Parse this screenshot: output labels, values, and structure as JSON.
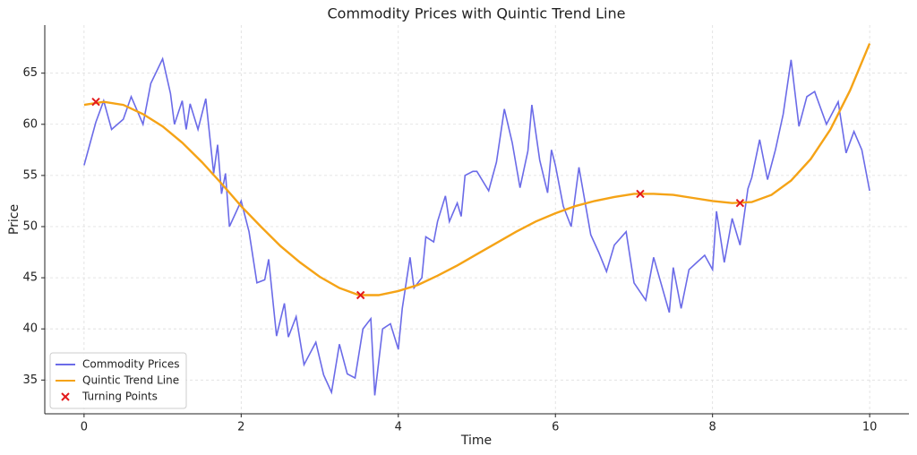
{
  "chart_data": {
    "type": "line",
    "title": "Commodity Prices with Quintic Trend Line",
    "x_label": "Time",
    "y_label": "Price",
    "xlim": [
      -0.5,
      10.5
    ],
    "ylim": [
      31.7,
      69.7
    ],
    "xticks": [
      0,
      2,
      4,
      6,
      8,
      10
    ],
    "yticks": [
      35,
      40,
      45,
      50,
      55,
      60,
      65
    ],
    "grid": true,
    "legend": "lower left",
    "series": [
      {
        "name": "Commodity Prices",
        "color": "#6b6be8",
        "marker": "none",
        "x": [
          0,
          0.15,
          0.25,
          0.35,
          0.5,
          0.6,
          0.75,
          0.85,
          1.0,
          1.1,
          1.15,
          1.25,
          1.3,
          1.35,
          1.45,
          1.55,
          1.65,
          1.7,
          1.75,
          1.8,
          1.85,
          2.0,
          2.1,
          2.2,
          2.3,
          2.35,
          2.45,
          2.55,
          2.6,
          2.7,
          2.8,
          2.95,
          3.05,
          3.15,
          3.25,
          3.35,
          3.45,
          3.55,
          3.65,
          3.7,
          3.8,
          3.9,
          4.0,
          4.05,
          4.15,
          4.2,
          4.3,
          4.35,
          4.45,
          4.5,
          4.6,
          4.65,
          4.75,
          4.8,
          4.85,
          4.95,
          5.0,
          5.15,
          5.25,
          5.35,
          5.45,
          5.55,
          5.65,
          5.7,
          5.8,
          5.9,
          5.95,
          6.0,
          6.1,
          6.2,
          6.3,
          6.45,
          6.55,
          6.65,
          6.75,
          6.9,
          7.0,
          7.15,
          7.25,
          7.45,
          7.5,
          7.6,
          7.7,
          7.8,
          7.9,
          8.0,
          8.05,
          8.15,
          8.25,
          8.35,
          8.45,
          8.5,
          8.6,
          8.7,
          8.8,
          8.9,
          9.0,
          9.1,
          9.2,
          9.3,
          9.45,
          9.6,
          9.7,
          9.8,
          9.9,
          10.0
        ],
        "values": [
          56.0,
          60.2,
          62.3,
          59.5,
          60.5,
          62.7,
          60.0,
          64.0,
          66.4,
          63.0,
          60.0,
          62.3,
          59.5,
          62.0,
          59.5,
          62.5,
          55.2,
          58.0,
          53.2,
          55.2,
          50.0,
          52.5,
          49.5,
          44.5,
          44.8,
          46.8,
          39.3,
          42.5,
          39.2,
          41.2,
          36.5,
          38.7,
          35.5,
          33.8,
          38.5,
          35.6,
          35.2,
          40.0,
          41.0,
          33.5,
          40.0,
          40.5,
          38.0,
          42.0,
          47.0,
          44.0,
          45.0,
          49.0,
          48.5,
          50.5,
          53.0,
          50.5,
          52.3,
          51.0,
          55.0,
          55.4,
          55.4,
          53.5,
          56.3,
          61.5,
          58.2,
          53.8,
          57.4,
          61.9,
          56.5,
          53.3,
          57.5,
          56.0,
          52.0,
          50.0,
          55.8,
          49.2,
          47.5,
          45.6,
          48.2,
          49.5,
          44.5,
          42.8,
          47.0,
          41.6,
          46.0,
          42.0,
          45.8,
          46.5,
          47.2,
          45.8,
          51.5,
          46.5,
          50.8,
          48.2,
          53.7,
          54.8,
          58.5,
          54.6,
          57.5,
          61.0,
          66.3,
          59.8,
          62.7,
          63.2,
          60.0,
          62.2,
          57.2,
          59.3,
          57.5,
          53.5
        ]
      },
      {
        "name": "Quintic Trend Line",
        "color": "#f5a316",
        "marker": "none",
        "x": [
          0,
          0.25,
          0.5,
          0.75,
          1.0,
          1.25,
          1.5,
          1.75,
          2.0,
          2.25,
          2.5,
          2.75,
          3.0,
          3.25,
          3.5,
          3.75,
          4.0,
          4.25,
          4.5,
          4.75,
          5.0,
          5.25,
          5.5,
          5.75,
          6.0,
          6.25,
          6.5,
          6.75,
          7.0,
          7.25,
          7.5,
          7.75,
          8.0,
          8.25,
          8.5,
          8.75,
          9.0,
          9.25,
          9.5,
          9.75,
          10.0
        ],
        "values": [
          61.9,
          62.2,
          61.9,
          61.0,
          59.8,
          58.2,
          56.3,
          54.2,
          52.0,
          50.0,
          48.1,
          46.5,
          45.1,
          44.0,
          43.3,
          43.3,
          43.7,
          44.3,
          45.2,
          46.2,
          47.3,
          48.4,
          49.5,
          50.5,
          51.3,
          52.0,
          52.5,
          52.9,
          53.2,
          53.2,
          53.1,
          52.8,
          52.5,
          52.3,
          52.4,
          53.1,
          54.5,
          56.6,
          59.5,
          63.3,
          67.9
        ]
      },
      {
        "name": "Turning Points",
        "color": "#e31a1c",
        "marker": "x",
        "x": [
          0.15,
          3.52,
          7.08,
          8.35
        ],
        "values": [
          62.2,
          43.3,
          53.2,
          52.3
        ]
      }
    ]
  }
}
